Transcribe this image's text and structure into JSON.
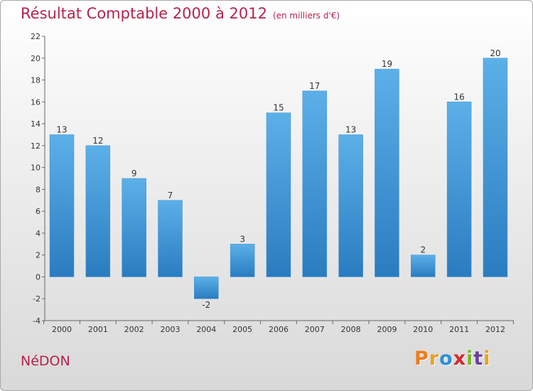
{
  "header": {
    "title": "Résultat Comptable 2000 à 2012",
    "subtitle": "(en milliers d'€)"
  },
  "footer": {
    "commune": "NéDON",
    "logo_text": "Proxiti"
  },
  "colors": {
    "title": "#b8224a",
    "bar_top": "#5cb0e8",
    "bar_bottom": "#2a7cc0",
    "logo": [
      "#f07c1c",
      "#e8a21c",
      "#2a8fd6",
      "#d8262c",
      "#79b829",
      "#6b3fa0",
      "#e8a21c"
    ]
  },
  "chart_data": {
    "type": "bar",
    "title": "Résultat Comptable 2000 à 2012",
    "subtitle": "(en milliers d'€)",
    "categories": [
      "2000",
      "2001",
      "2002",
      "2003",
      "2004",
      "2005",
      "2006",
      "2007",
      "2008",
      "2009",
      "2010",
      "2011",
      "2012"
    ],
    "values": [
      13,
      12,
      9,
      7,
      -2,
      3,
      15,
      17,
      13,
      19,
      2,
      16,
      20
    ],
    "data_labels": [
      "13",
      "12",
      "9",
      "7",
      "-2",
      "3",
      "15",
      "17",
      "13",
      "19",
      "2",
      "16",
      "20"
    ],
    "yticks": [
      -4,
      -2,
      0,
      2,
      4,
      6,
      8,
      10,
      12,
      14,
      16,
      18,
      20,
      22
    ],
    "ylim": [
      -4,
      22
    ],
    "xlabel": "",
    "ylabel": "",
    "grid": false
  }
}
